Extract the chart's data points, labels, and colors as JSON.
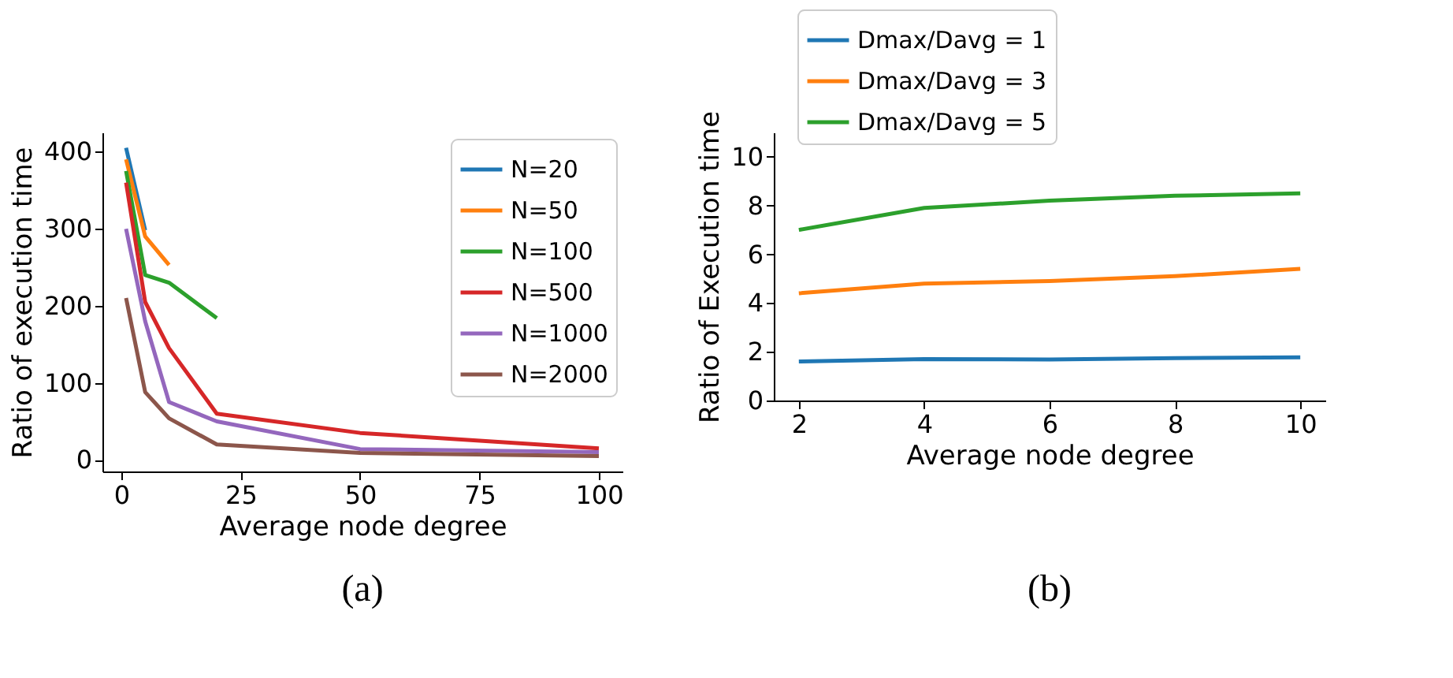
{
  "chart_data": [
    {
      "type": "line",
      "xlabel": "Average node degree",
      "ylabel": "Ratio of execution time",
      "xlim": [
        -3.95,
        104.95
      ],
      "ylim": [
        -15,
        425
      ],
      "xticks": [
        0,
        25,
        50,
        75,
        100
      ],
      "yticks": [
        0,
        100,
        200,
        300,
        400
      ],
      "legend": "top right",
      "grid": false,
      "annotations": [
        "(a)"
      ],
      "x": [
        1,
        5,
        10,
        20,
        50,
        100
      ],
      "series": [
        {
          "name": "N=20",
          "color": "#1f77b4",
          "values": [
            405,
            298,
            null,
            null,
            null,
            null
          ]
        },
        {
          "name": "N=50",
          "color": "#ff7f0e",
          "values": [
            390,
            290,
            253,
            null,
            null,
            null
          ]
        },
        {
          "name": "N=100",
          "color": "#2ca02c",
          "values": [
            375,
            240,
            230,
            184,
            null,
            null
          ]
        },
        {
          "name": "N=500",
          "color": "#d62728",
          "values": [
            360,
            205,
            145,
            60,
            35,
            15
          ]
        },
        {
          "name": "N=1000",
          "color": "#9467bd",
          "values": [
            300,
            180,
            75,
            50,
            14,
            10
          ]
        },
        {
          "name": "N=2000",
          "color": "#8c564b",
          "values": [
            210,
            88,
            54,
            20,
            9,
            5
          ]
        }
      ]
    },
    {
      "type": "line",
      "xlabel": "Average node degree",
      "ylabel": "Ratio of Execution time",
      "xlim": [
        1.6,
        10.4
      ],
      "ylim": [
        0,
        11
      ],
      "xticks": [
        2,
        4,
        6,
        8,
        10
      ],
      "yticks": [
        0,
        2,
        4,
        6,
        8,
        10
      ],
      "legend": "top",
      "grid": false,
      "annotations": [
        "(b)"
      ],
      "x": [
        2,
        4,
        6,
        8,
        10
      ],
      "series": [
        {
          "name": "Dmax/Davg = 1",
          "color": "#1f77b4",
          "values": [
            1.6,
            1.7,
            1.68,
            1.74,
            1.77
          ]
        },
        {
          "name": "Dmax/Davg = 3",
          "color": "#ff7f0e",
          "values": [
            4.4,
            4.8,
            4.9,
            5.1,
            5.4
          ]
        },
        {
          "name": "Dmax/Davg = 5",
          "color": "#2ca02c",
          "values": [
            7.0,
            7.9,
            8.2,
            8.4,
            8.5
          ]
        }
      ]
    }
  ]
}
